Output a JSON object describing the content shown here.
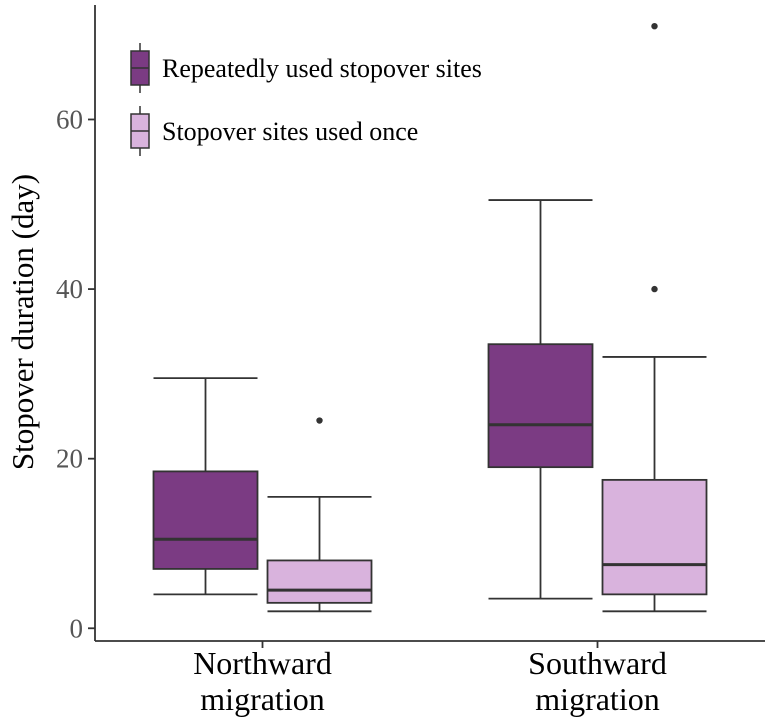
{
  "chart_data": {
    "type": "boxplot",
    "ylabel": "Stopover duration (day)",
    "xlabel": "",
    "ylim": [
      -1.5,
      73.5
    ],
    "yticks": [
      0,
      20,
      40,
      60
    ],
    "categories": [
      {
        "line1": "Northward",
        "line2": "migration"
      },
      {
        "line1": "Southward",
        "line2": "migration"
      }
    ],
    "legend": {
      "placement": "top-left",
      "entries": [
        {
          "label": "Repeatedly used stopover sites",
          "color": "#7b3b83"
        },
        {
          "label": "Stopover sites used once",
          "color": "#d9b3dd"
        }
      ]
    },
    "series": [
      {
        "name": "Repeatedly used stopover sites",
        "color": "#7b3b83",
        "boxes": [
          {
            "category": "Northward migration",
            "min": 4,
            "q1": 7,
            "median": 10.5,
            "q3": 18.5,
            "max": 29.5,
            "outliers": []
          },
          {
            "category": "Southward migration",
            "min": 3.5,
            "q1": 19,
            "median": 24,
            "q3": 33.5,
            "max": 50.5,
            "outliers": []
          }
        ]
      },
      {
        "name": "Stopover sites used once",
        "color": "#d9b3dd",
        "boxes": [
          {
            "category": "Northward migration",
            "min": 2,
            "q1": 3,
            "median": 4.5,
            "q3": 8,
            "max": 15.5,
            "outliers": [
              24.5
            ]
          },
          {
            "category": "Southward migration",
            "min": 2,
            "q1": 4,
            "median": 7.5,
            "q3": 17.5,
            "max": 32,
            "outliers": [
              40,
              71
            ]
          }
        ]
      }
    ],
    "grid": false,
    "axis_color": "#333333"
  }
}
